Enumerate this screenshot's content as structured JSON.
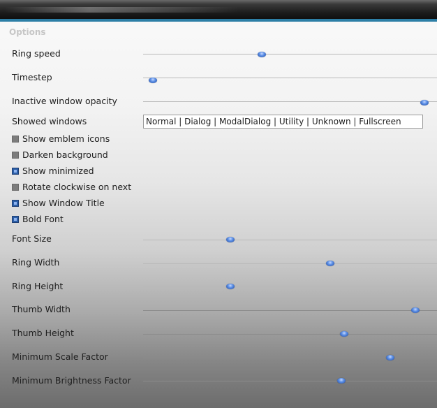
{
  "section": {
    "title": "Options"
  },
  "sliders_top": [
    {
      "label": "Ring speed",
      "value_fraction": 0.4
    },
    {
      "label": "Timestep",
      "value_fraction": 0.02
    },
    {
      "label": "Inactive window opacity",
      "value_fraction": 0.97
    }
  ],
  "showed_windows": {
    "label": "Showed windows",
    "value": "Normal | Dialog | ModalDialog | Utility | Unknown | Fullscreen"
  },
  "checkboxes": [
    {
      "label": "Show emblem icons",
      "checked": false
    },
    {
      "label": "Darken background",
      "checked": false
    },
    {
      "label": "Show minimized",
      "checked": true
    },
    {
      "label": "Rotate clockwise on next",
      "checked": false
    },
    {
      "label": "Show Window Title",
      "checked": true
    },
    {
      "label": "Bold Font",
      "checked": true
    }
  ],
  "sliders_bottom": [
    {
      "label": "Font Size",
      "value_fraction": 0.29
    },
    {
      "label": "Ring Width",
      "value_fraction": 0.64
    },
    {
      "label": "Ring Height",
      "value_fraction": 0.29
    },
    {
      "label": "Thumb Width",
      "value_fraction": 0.94
    },
    {
      "label": "Thumb Height",
      "value_fraction": 0.69
    },
    {
      "label": "Minimum Scale Factor",
      "value_fraction": 0.85
    },
    {
      "label": "Minimum Brightness Factor",
      "value_fraction": 0.68
    }
  ],
  "colors": {
    "accent": "#2d7fa6",
    "thumb": "#3b6fd0",
    "checkbox_on": "#2c5fa8",
    "checkbox_off": "#7c7c7c"
  },
  "icons": {
    "checkbox_on": "checked-box-icon",
    "checkbox_off": "unchecked-box-icon",
    "slider_thumb": "slider-knob-icon"
  }
}
